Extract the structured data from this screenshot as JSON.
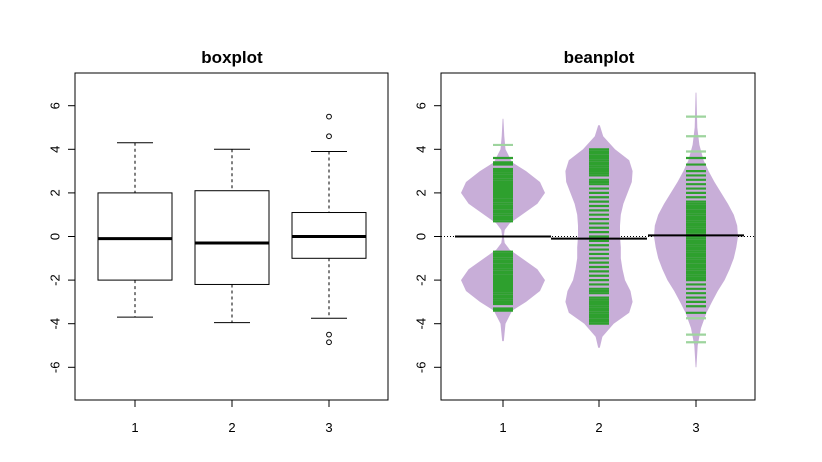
{
  "chart_data": [
    {
      "type": "boxplot",
      "title": "boxplot",
      "xlabel": "",
      "ylabel": "",
      "ylim": [
        -7.5,
        7.5
      ],
      "yticks": [
        "6",
        "4",
        "2",
        "0",
        "-2",
        "-4",
        "-6"
      ],
      "categories": [
        "1",
        "2",
        "3"
      ],
      "boxes": [
        {
          "whisker_low": -3.7,
          "q1": -2.0,
          "median": -0.1,
          "q3": 2.0,
          "whisker_high": 4.3,
          "outliers": []
        },
        {
          "whisker_low": -3.95,
          "q1": -2.2,
          "median": -0.3,
          "q3": 2.1,
          "whisker_high": 4.0,
          "outliers": []
        },
        {
          "whisker_low": -3.75,
          "q1": -1.0,
          "median": 0.0,
          "q3": 1.1,
          "whisker_high": 3.9,
          "outliers": [
            5.5,
            4.6,
            -4.5,
            -4.85
          ]
        }
      ],
      "colors": {
        "box": "#ffffff",
        "line": "#000000"
      }
    },
    {
      "type": "beanplot",
      "title": "beanplot",
      "xlabel": "",
      "ylabel": "",
      "ylim": [
        -7.5,
        7.5
      ],
      "yticks": [
        "6",
        "4",
        "2",
        "0",
        "-2",
        "-4",
        "-6"
      ],
      "categories": [
        "1",
        "2",
        "3"
      ],
      "overall_mean": 0.0,
      "beans": [
        {
          "mean": 0.0,
          "range": [
            -4.8,
            5.4
          ],
          "density_profile": [
            [
              -4.8,
              0.02
            ],
            [
              -4.0,
              0.06
            ],
            [
              -3.4,
              0.22
            ],
            [
              -3.0,
              0.55
            ],
            [
              -2.5,
              0.88
            ],
            [
              -2.0,
              1.0
            ],
            [
              -1.5,
              0.82
            ],
            [
              -1.0,
              0.45
            ],
            [
              -0.6,
              0.16
            ],
            [
              -0.3,
              0.04
            ],
            [
              0.0,
              0.02
            ],
            [
              0.3,
              0.04
            ],
            [
              0.6,
              0.16
            ],
            [
              1.0,
              0.45
            ],
            [
              1.5,
              0.82
            ],
            [
              2.0,
              1.0
            ],
            [
              2.5,
              0.88
            ],
            [
              3.0,
              0.55
            ],
            [
              3.4,
              0.22
            ],
            [
              4.0,
              0.06
            ],
            [
              4.6,
              0.03
            ],
            [
              5.4,
              0.01
            ]
          ],
          "observations": [
            -3.4,
            -3.3,
            -3.1,
            -3.0,
            -2.9,
            -2.8,
            -2.7,
            -2.6,
            -2.5,
            -2.45,
            -2.4,
            -2.35,
            -2.3,
            -2.2,
            -2.15,
            -2.1,
            -2.05,
            -2.0,
            -1.95,
            -1.9,
            -1.85,
            -1.8,
            -1.7,
            -1.65,
            -1.6,
            -1.5,
            -1.4,
            -1.3,
            -1.2,
            -1.1,
            -1.0,
            -0.9,
            -0.8,
            -0.7,
            0.7,
            0.8,
            0.9,
            1.0,
            1.1,
            1.2,
            1.3,
            1.4,
            1.5,
            1.6,
            1.65,
            1.7,
            1.8,
            1.85,
            1.9,
            1.95,
            2.0,
            2.05,
            2.1,
            2.15,
            2.2,
            2.3,
            2.35,
            2.4,
            2.45,
            2.5,
            2.6,
            2.7,
            2.8,
            2.9,
            3.0,
            3.1,
            3.3,
            3.4,
            3.6,
            4.2
          ]
        },
        {
          "mean": -0.1,
          "range": [
            -5.1,
            5.1
          ],
          "density_profile": [
            [
              -5.1,
              0.02
            ],
            [
              -4.6,
              0.08
            ],
            [
              -4.0,
              0.35
            ],
            [
              -3.5,
              0.72
            ],
            [
              -3.0,
              0.8
            ],
            [
              -2.5,
              0.75
            ],
            [
              -2.0,
              0.62
            ],
            [
              -1.5,
              0.56
            ],
            [
              -1.0,
              0.52
            ],
            [
              -0.5,
              0.52
            ],
            [
              0.0,
              0.5
            ],
            [
              0.5,
              0.5
            ],
            [
              1.0,
              0.52
            ],
            [
              1.5,
              0.58
            ],
            [
              2.0,
              0.68
            ],
            [
              2.5,
              0.78
            ],
            [
              3.0,
              0.8
            ],
            [
              3.5,
              0.72
            ],
            [
              4.0,
              0.38
            ],
            [
              4.6,
              0.1
            ],
            [
              5.1,
              0.02
            ]
          ],
          "observations": [
            -4.0,
            -3.9,
            -3.8,
            -3.7,
            -3.6,
            -3.5,
            -3.4,
            -3.3,
            -3.2,
            -3.1,
            -3.0,
            -2.9,
            -2.8,
            -2.6,
            -2.5,
            -2.4,
            -2.2,
            -2.0,
            -1.8,
            -1.6,
            -1.4,
            -1.2,
            -1.0,
            -0.8,
            -0.6,
            -0.4,
            -0.2,
            0.0,
            0.2,
            0.4,
            0.6,
            0.8,
            1.0,
            1.2,
            1.4,
            1.6,
            1.8,
            2.0,
            2.2,
            2.4,
            2.5,
            2.6,
            2.8,
            2.9,
            3.0,
            3.1,
            3.2,
            3.3,
            3.4,
            3.5,
            3.6,
            3.7,
            3.8,
            3.9,
            4.0
          ]
        },
        {
          "mean": 0.05,
          "range": [
            -6.0,
            6.6
          ],
          "density_profile": [
            [
              -6.0,
              0.01
            ],
            [
              -5.0,
              0.04
            ],
            [
              -4.2,
              0.12
            ],
            [
              -3.5,
              0.25
            ],
            [
              -3.0,
              0.38
            ],
            [
              -2.5,
              0.52
            ],
            [
              -2.0,
              0.68
            ],
            [
              -1.5,
              0.8
            ],
            [
              -1.0,
              0.9
            ],
            [
              -0.5,
              0.96
            ],
            [
              0.0,
              1.0
            ],
            [
              0.5,
              0.98
            ],
            [
              1.0,
              0.9
            ],
            [
              1.5,
              0.76
            ],
            [
              2.0,
              0.6
            ],
            [
              2.5,
              0.44
            ],
            [
              3.0,
              0.3
            ],
            [
              3.5,
              0.18
            ],
            [
              4.2,
              0.08
            ],
            [
              5.0,
              0.03
            ],
            [
              6.6,
              0.01
            ]
          ],
          "observations": [
            -4.85,
            -4.5,
            -3.75,
            -3.5,
            -3.2,
            -3.0,
            -2.8,
            -2.6,
            -2.4,
            -2.2,
            -2.0,
            -1.9,
            -1.8,
            -1.7,
            -1.6,
            -1.5,
            -1.4,
            -1.3,
            -1.2,
            -1.1,
            -1.0,
            -0.9,
            -0.8,
            -0.7,
            -0.6,
            -0.5,
            -0.4,
            -0.3,
            -0.2,
            -0.1,
            0.0,
            0.1,
            0.2,
            0.3,
            0.4,
            0.5,
            0.6,
            0.7,
            0.8,
            0.9,
            1.0,
            1.1,
            1.2,
            1.3,
            1.4,
            1.5,
            1.6,
            1.8,
            2.0,
            2.2,
            2.4,
            2.6,
            2.8,
            3.0,
            3.3,
            3.6,
            3.9,
            4.6,
            5.5
          ]
        }
      ],
      "colors": {
        "bean_fill": "#c8aed8",
        "bean_lines": "#2ea02e",
        "bean_line_faint": "#9ed49e",
        "mean_line": "#000000"
      }
    }
  ]
}
